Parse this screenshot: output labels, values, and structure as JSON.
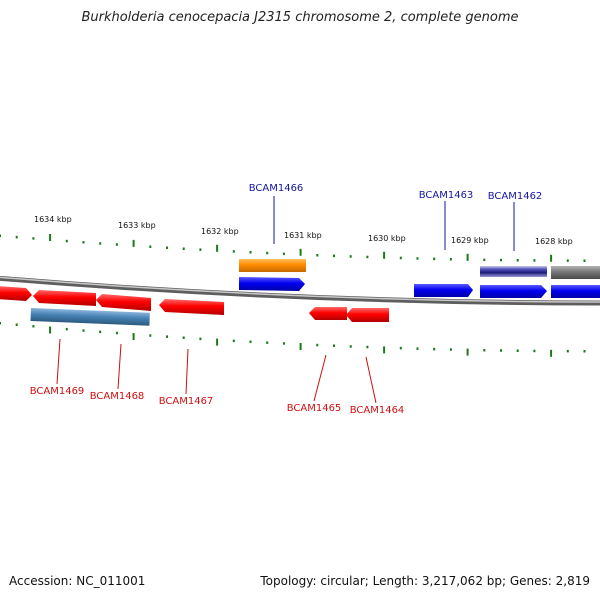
{
  "title": "Burkholderia cenocepacia J2315 chromosome 2, complete genome",
  "footer": {
    "accession": "Accession: NC_011001",
    "summary": "Topology: circular; Length: 3,217,062 bp; Genes: 2,819"
  },
  "scale_labels": [
    "1634 kbp",
    "1633 kbp",
    "1632 kbp",
    "1631 kbp",
    "1630 kbp",
    "1629 kbp",
    "1628 kbp"
  ],
  "gene_labels": {
    "top": [
      "BCAM1466",
      "BCAM1463",
      "BCAM1462"
    ],
    "bottom": [
      "BCAM1469",
      "BCAM1468",
      "BCAM1467",
      "BCAM1465",
      "BCAM1464"
    ]
  },
  "colors": {
    "forward": "#0000ee",
    "reverse": "#ee0000",
    "orange": "#ff8c00",
    "steel": "#4682b4",
    "gray": "#777777",
    "navy": "#23238e",
    "ticks": "#1a7a1a",
    "backbone": "#888888",
    "label_top": "#1515a0",
    "label_bottom": "#cc1010"
  }
}
